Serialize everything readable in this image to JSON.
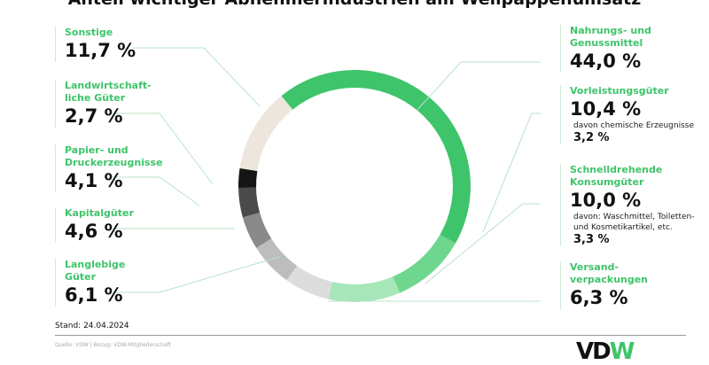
{
  "chart_data": {
    "type": "pie",
    "title": "Anteil wichtiger Abnehmerindustrien am Wellpappenumsatz",
    "slices": [
      {
        "label": "Nahrungs- und Genussmittel",
        "value": 44.0,
        "display": "44,0 %",
        "color": "#3ec46a"
      },
      {
        "label": "Vorleistungsgüter",
        "value": 10.4,
        "display": "10,4 %",
        "color": "#6fd68e",
        "note": "davon chemische Erzeugnisse",
        "note_value": "3,2 %"
      },
      {
        "label": "Schnelldrehende Konsumgüter",
        "value": 10.0,
        "display": "10,0 %",
        "color": "#a6e6b8",
        "note": "davon: Waschmittel, Toiletten- und Kosmetikartikel, etc.",
        "note_value": "3,3 %"
      },
      {
        "label": "Versand-verpackungen",
        "value": 6.3,
        "display": "6,3 %",
        "color": "#dcdcdc"
      },
      {
        "label": "Langlebige Güter",
        "value": 6.1,
        "display": "6,1 %",
        "color": "#bdbdbd"
      },
      {
        "label": "Kapitalgüter",
        "value": 4.6,
        "display": "4,6 %",
        "color": "#8a8a8a"
      },
      {
        "label": "Papier- und Druckerzeugnisse",
        "value": 4.1,
        "display": "4,1 %",
        "color": "#4a4a4a"
      },
      {
        "label": "Landwirtschaft-liche Güter",
        "value": 2.7,
        "display": "2,7 %",
        "color": "#151515"
      },
      {
        "label": "Sonstige",
        "value": 11.7,
        "display": "11,7 %",
        "color": "#ece6dc"
      }
    ]
  },
  "footer": {
    "stand": "Stand: 24.04.2024",
    "source": "Quelle: VDW | Bezug: VDW-Mitgliederschaft",
    "logo_a": "VD",
    "logo_b": "W"
  }
}
